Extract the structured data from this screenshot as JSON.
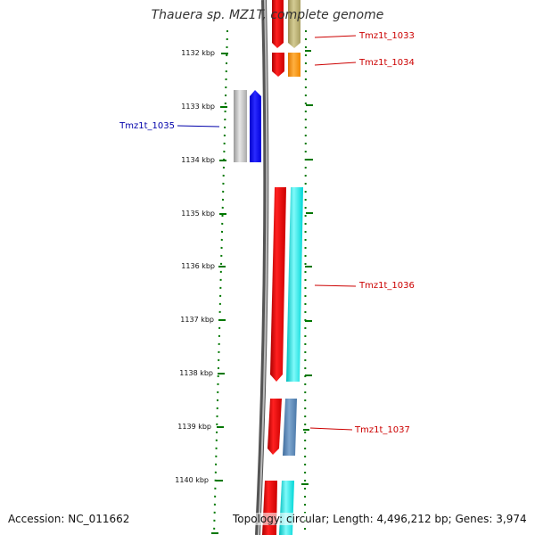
{
  "title": "Thauera sp. MZ1T, complete genome",
  "ticks": [
    "1132 kbp",
    "1133 kbp",
    "1134 kbp",
    "1135 kbp",
    "1136 kbp",
    "1137 kbp",
    "1138 kbp",
    "1139 kbp",
    "1140 kbp"
  ],
  "genes": [
    {
      "label": "Tmz1t_1033",
      "color": "#cc0000"
    },
    {
      "label": "Tmz1t_1034",
      "color": "#cc0000"
    },
    {
      "label": "Tmz1t_1035",
      "color": "#0000aa"
    },
    {
      "label": "Tmz1t_1036",
      "color": "#cc0000"
    },
    {
      "label": "Tmz1t_1037",
      "color": "#cc0000"
    }
  ],
  "colors": {
    "forward_cds": "#ff0000",
    "gc_skew": "#00e5e5",
    "reverse_cds": "#0000ff",
    "tick_marks": "#007700",
    "backbone": "#888888",
    "olive": "#b5a96a",
    "orange": "#ff8c00",
    "steelblue": "#4f7fb0",
    "gray": "#bbbbbb"
  },
  "footer": {
    "accession": "Accession: NC_011662",
    "summary": "Topology: circular; Length: 4,496,212 bp; Genes: 3,974"
  }
}
